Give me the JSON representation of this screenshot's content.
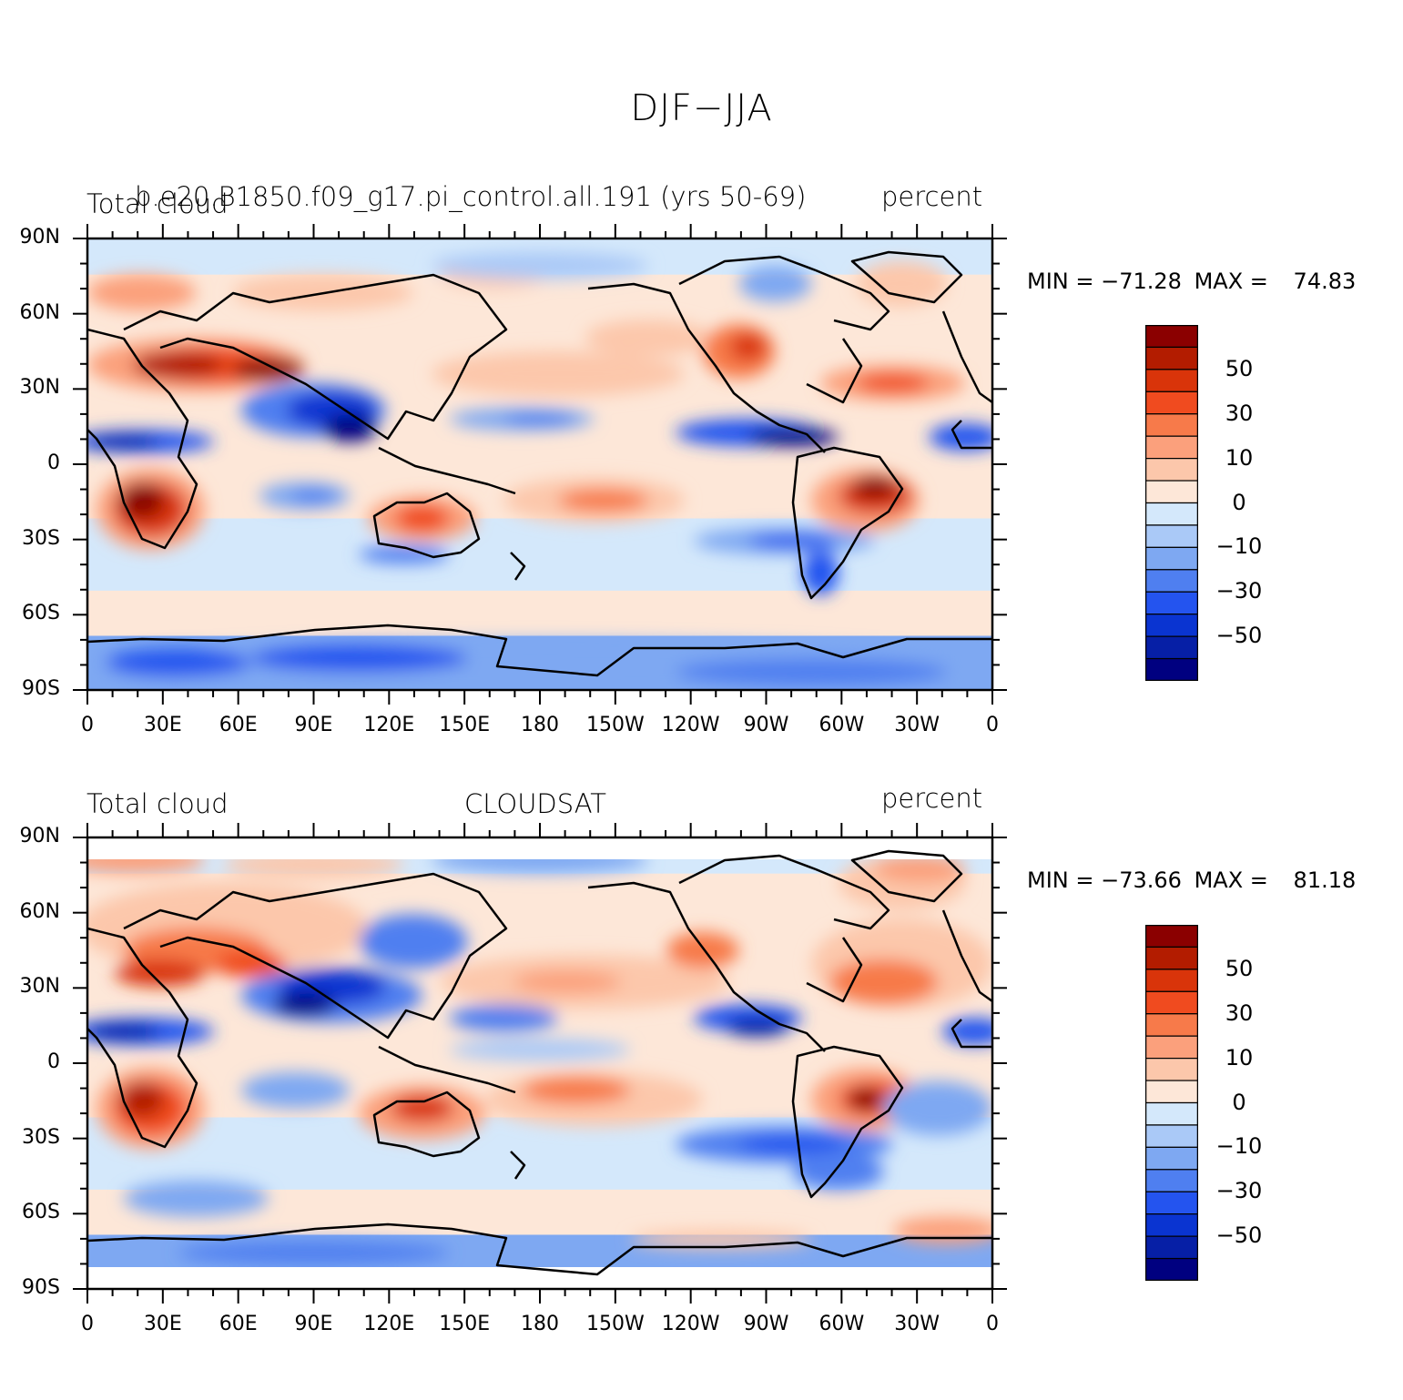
{
  "title": "DJF−JJA",
  "panels": [
    {
      "left_title": "Total cloud",
      "center_title": "b.e20.B1850.f09_g17.pi_control.all.191 (yrs 50-69)",
      "right_title": "percent",
      "min_label": "MIN =",
      "min_value": "−71.28",
      "max_label": "MAX =",
      "max_value": "74.83",
      "missing_poles": false
    },
    {
      "left_title": "Total cloud",
      "center_title": "CLOUDSAT",
      "right_title": "percent",
      "min_label": "MIN =",
      "min_value": "−73.66",
      "max_label": "MAX =",
      "max_value": "81.18",
      "missing_poles": true
    }
  ],
  "lat_labels": [
    "90N",
    "60N",
    "30N",
    "0",
    "30S",
    "60S",
    "90S"
  ],
  "lon_labels": [
    "0",
    "30E",
    "60E",
    "90E",
    "120E",
    "150E",
    "180",
    "150W",
    "120W",
    "90W",
    "60W",
    "30W",
    "0"
  ],
  "colorbar": {
    "labels": [
      "50",
      "30",
      "10",
      "0",
      "−10",
      "−30",
      "−50"
    ],
    "colors": [
      "#8b0000",
      "#b31c00",
      "#d9340a",
      "#f04b1f",
      "#f77a4a",
      "#fba07c",
      "#fcc7ab",
      "#fde7d8",
      "#d4e8fb",
      "#aac9f7",
      "#7ea8f2",
      "#4f7ff0",
      "#2454ef",
      "#0a34d1",
      "#061fa6",
      "#000080"
    ]
  }
}
